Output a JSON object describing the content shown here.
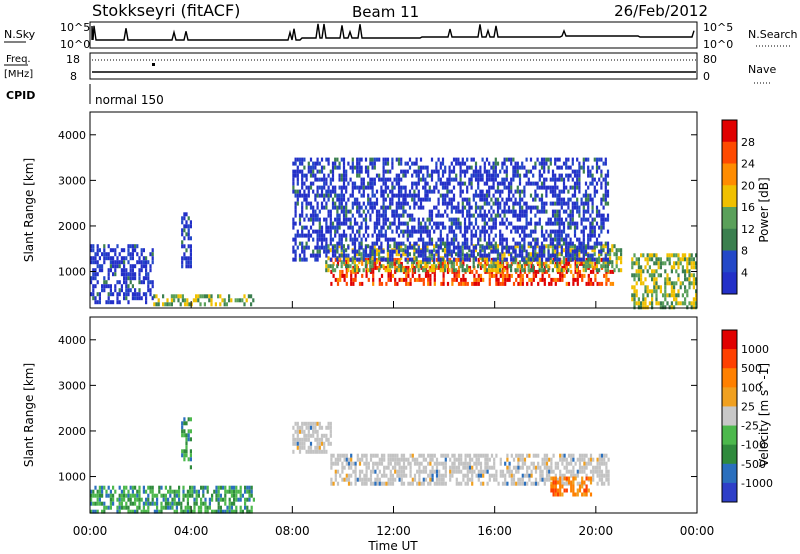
{
  "header": {
    "site": "Stokkseyri (fitACF)",
    "beam": "Beam 11",
    "date": "26/Feb/2012"
  },
  "panels": {
    "nsky": {
      "left_label": "N.Sky",
      "right_label": "N.Search",
      "left_ticks": [
        "10^5",
        "10^0"
      ],
      "right_ticks": [
        "10^5",
        "10^0"
      ]
    },
    "freq": {
      "left_label_1": "Freq.",
      "left_label_2": "[MHz]",
      "right_label": "Nave",
      "left_ticks": [
        "18",
        "8"
      ],
      "right_ticks": [
        "80",
        "0"
      ]
    },
    "cpid": {
      "label": "CPID",
      "program": "normal 150"
    }
  },
  "colors": {
    "power": [
      "#2330c8",
      "#2348c8",
      "#3b7f4f",
      "#5aa05a",
      "#f0c000",
      "#ff8c00",
      "#ff4a00",
      "#e00000"
    ],
    "velocity": [
      "#2e3fc8",
      "#2a6fbd",
      "#2f8a3c",
      "#4cb84c",
      "#c8c8c8",
      "#f0a020",
      "#ff8000",
      "#ff4000",
      "#e00000"
    ],
    "velocity_scatter_gray": "#c3c3c3"
  },
  "chart_data": [
    {
      "type": "heatmap",
      "title": "",
      "ylabel": "Slant Range [km]",
      "ylim": [
        200,
        4500
      ],
      "yticks": [
        "1000",
        "2000",
        "3000",
        "4000"
      ],
      "colorbar_label": "Power [dB]",
      "colorbar_ticks": [
        "28",
        "24",
        "20",
        "16",
        "12",
        "8",
        "4"
      ],
      "regions": [
        {
          "t0": 9.5,
          "t1": 20.7,
          "r0": 700,
          "r1": 1300,
          "level": "high"
        },
        {
          "t0": 9.3,
          "t1": 21.0,
          "r0": 1000,
          "r1": 1600,
          "level": "mid"
        },
        {
          "t0": 8.0,
          "t1": 20.5,
          "r0": 1300,
          "r1": 3500,
          "level": "low"
        },
        {
          "t0": 0.0,
          "t1": 2.5,
          "r0": 300,
          "r1": 1600,
          "level": "low"
        },
        {
          "t0": 2.5,
          "t1": 6.5,
          "r0": 300,
          "r1": 500,
          "level": "mid"
        },
        {
          "t0": 3.6,
          "t1": 4.0,
          "r0": 1000,
          "r1": 2300,
          "level": "low"
        },
        {
          "t0": 21.4,
          "t1": 24.0,
          "r0": 200,
          "r1": 1400,
          "level": "mid"
        }
      ]
    },
    {
      "type": "heatmap",
      "title": "",
      "ylabel": "Slant Range [km]",
      "xlabel": "Time UT",
      "ylim": [
        200,
        4500
      ],
      "yticks": [
        "1000",
        "2000",
        "3000",
        "4000"
      ],
      "xticks": [
        "00:00",
        "04:00",
        "08:00",
        "12:00",
        "16:00",
        "20:00",
        "00:00"
      ],
      "colorbar_label": "Velocity [m s^-1]",
      "colorbar_ticks": [
        "1000",
        "500",
        "100",
        "25",
        "-25",
        "-100",
        "-500",
        "-1000"
      ],
      "regions": [
        {
          "t0": 9.5,
          "t1": 20.5,
          "r0": 800,
          "r1": 1500,
          "level": "near-zero"
        },
        {
          "t0": 8.0,
          "t1": 9.5,
          "r0": 1500,
          "r1": 2200,
          "level": "near-zero"
        },
        {
          "t0": 18.2,
          "t1": 19.8,
          "r0": 600,
          "r1": 1000,
          "level": "away"
        },
        {
          "t0": 0.0,
          "t1": 6.5,
          "r0": 200,
          "r1": 800,
          "level": "toward"
        },
        {
          "t0": 3.6,
          "t1": 4.0,
          "r0": 1200,
          "r1": 2300,
          "level": "toward"
        }
      ]
    }
  ]
}
